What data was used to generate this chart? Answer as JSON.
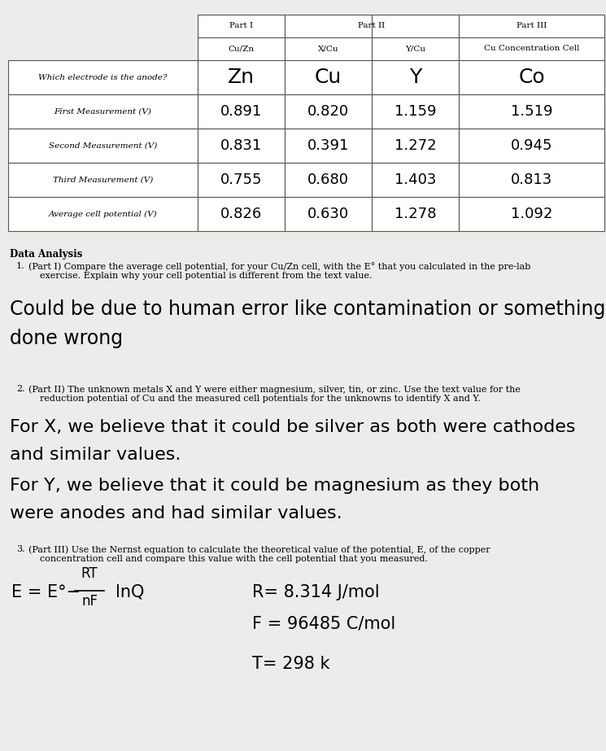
{
  "bg_color": "#ececea",
  "table_bg": "#ffffff",
  "col_headers_row1": [
    "Part I",
    "Part II",
    "",
    "Part III"
  ],
  "col_headers_row2": [
    "Cu/Zn",
    "X/Cu",
    "Y/Cu",
    "Cu Concentration Cell"
  ],
  "row_labels": [
    "Which electrode is the anode?",
    "First Measurement (V)",
    "Second Measurement (V)",
    "Third Measurement (V)",
    "Average cell potential (V)"
  ],
  "table_data": [
    [
      "Zn",
      "Cu",
      "Y",
      "Co"
    ],
    [
      "0.891",
      "0.820",
      "1.159",
      "1.519"
    ],
    [
      "0.831",
      "0.391",
      "1.272",
      "0.945"
    ],
    [
      "0.755",
      "0.680",
      "1.403",
      "0.813"
    ],
    [
      "0.826",
      "0.630",
      "1.278",
      "1.092"
    ]
  ],
  "section_title": "Data Analysis",
  "q1_number": "1.",
  "q1_text": "(Part I) Compare the average cell potential, for your Cu/Zn cell, with the E° that you calculated in the pre-lab\n    exercise. Explain why your cell potential is different from the text value.",
  "q1_answer_line1": "Could be due to human error like contamination or something",
  "q1_answer_line2": "done wrong",
  "q2_number": "2.",
  "q2_text": "(Part II) The unknown metals X and Y were either magnesium, silver, tin, or zinc. Use the text value for the\n    reduction potential of Cu and the measured cell potentials for the unknowns to identify X and Y.",
  "q2_answer_line1": "For X, we believe that it could be silver as both were cathodes",
  "q2_answer_line2": "and similar values.",
  "q2_answer_line3": "For Y, we believe that it could be magnesium as they both",
  "q2_answer_line4": "were anodes and had similar values.",
  "q3_number": "3.",
  "q3_text": "(Part III) Use the Nernst equation to calculate the theoretical value of the potential, E, of the copper\n    concentration cell and compare this value with the cell potential that you measured.",
  "nernst_label": "E = E°−",
  "nernst_frac_top": "RT",
  "nernst_frac_bot": "nF",
  "nernst_lnQ": "lnQ",
  "r_value": "R= 8.314 J/mol",
  "f_value": "F = 96485 C/mol",
  "t_value": "T= 298 k"
}
